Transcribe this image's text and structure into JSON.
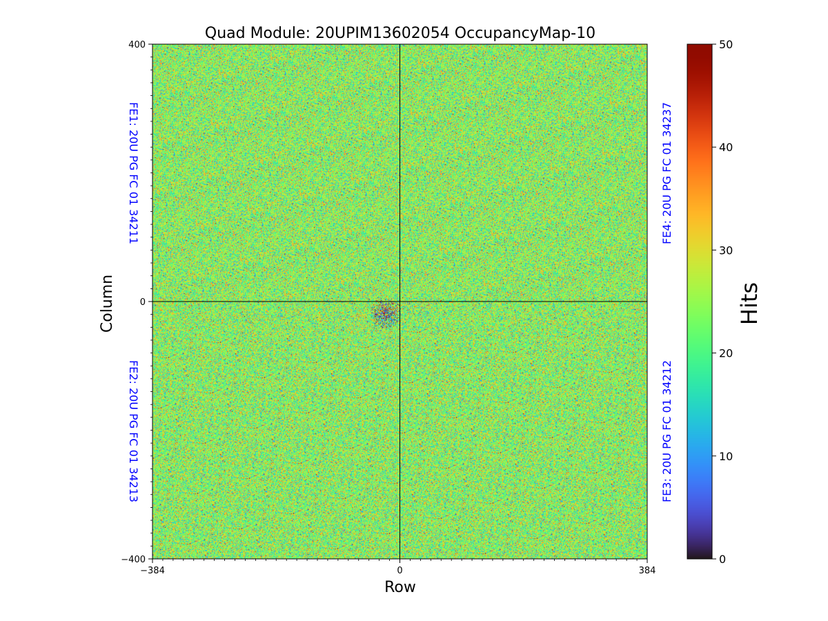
{
  "chart_data": {
    "type": "heatmap",
    "title": "Quad Module: 20UPIM13602054 OccupancyMap-10",
    "xlabel": "Row",
    "ylabel": "Column",
    "xlim": [
      -384,
      384
    ],
    "ylim": [
      -400,
      400
    ],
    "x_ticks": [
      "−384",
      "0",
      "384"
    ],
    "y_ticks": [
      "400",
      "0",
      "−400"
    ],
    "x_tick_values": [
      -384,
      0,
      384
    ],
    "y_tick_values": [
      400,
      0,
      -400
    ],
    "divider_lines": {
      "x": 0,
      "y": 0
    },
    "colorbar": {
      "label": "Hits",
      "range": [
        0,
        50
      ],
      "ticks": [
        "0",
        "10",
        "20",
        "30",
        "40",
        "50"
      ],
      "tick_values": [
        0,
        10,
        20,
        30,
        40,
        50
      ],
      "colormap": "turbo"
    },
    "distribution": {
      "typical_mean_hits": 24,
      "typical_spread_hits": 7
    },
    "anomaly": {
      "description_region": "low/dark noisy blob near origin",
      "x_center": -22,
      "y_center": -18,
      "radius": 24
    },
    "fe_labels": [
      {
        "name": "FE1",
        "text": "FE1: 20U PG FC 01 34211",
        "side": "left",
        "quadrant": "top"
      },
      {
        "name": "FE2",
        "text": "FE2: 20U PG FC 01 34213",
        "side": "left",
        "quadrant": "bottom"
      },
      {
        "name": "FE4",
        "text": "FE4: 20U PG FC 01 34237",
        "side": "right",
        "quadrant": "top"
      },
      {
        "name": "FE3",
        "text": "FE3: 20U PG FC 01 34212",
        "side": "right",
        "quadrant": "bottom"
      }
    ],
    "fe_label_color": "#0000ff"
  }
}
